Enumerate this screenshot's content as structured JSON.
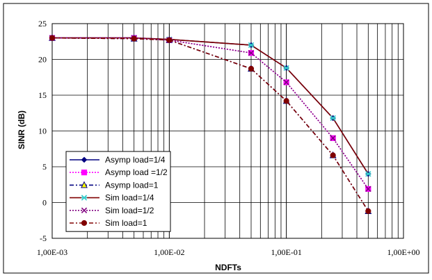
{
  "chart_data": {
    "type": "line",
    "title": "",
    "xlabel": "NDFTs",
    "ylabel": "SINR (dB)",
    "x_scale": "log",
    "xlim": [
      0.001,
      1
    ],
    "ylim": [
      -5,
      25
    ],
    "x_ticks": [
      0.001,
      0.01,
      0.1,
      1
    ],
    "x_tick_labels": [
      "1,00E-03",
      "1,00E-02",
      "1,00E-01",
      "1,00E+00"
    ],
    "y_ticks": [
      -5,
      0,
      5,
      10,
      15,
      20,
      25
    ],
    "y_tick_labels": [
      "-5",
      "0",
      "5",
      "10",
      "15",
      "20",
      "25"
    ],
    "grid": true,
    "legend_position": "bottom-left",
    "series": [
      {
        "name": "Asymp load=1/4",
        "color": "#000080",
        "dash": "solid",
        "marker": "diamond",
        "x": [
          0.001,
          0.005,
          0.01,
          0.05,
          0.1,
          0.25,
          0.5
        ],
        "y": [
          23.0,
          23.0,
          22.8,
          22.0,
          18.8,
          11.8,
          4.0
        ]
      },
      {
        "name": "Asymp load =1/2",
        "color": "#ff00ff",
        "dash": "dot",
        "marker": "square",
        "x": [
          0.001,
          0.005,
          0.01,
          0.05,
          0.1,
          0.25,
          0.5
        ],
        "y": [
          23.0,
          23.0,
          22.7,
          20.9,
          16.8,
          9.0,
          1.9
        ]
      },
      {
        "name": "Asymp load=1",
        "color": "#000080",
        "dash": "dashdot",
        "marker": "triangle",
        "x": [
          0.001,
          0.005,
          0.01,
          0.05,
          0.1,
          0.25,
          0.5
        ],
        "y": [
          23.0,
          22.9,
          22.7,
          18.7,
          14.2,
          6.6,
          -1.2
        ]
      },
      {
        "name": "Sim load=1/4",
        "color": "#800000",
        "dash": "solid",
        "marker": "star",
        "x": [
          0.001,
          0.005,
          0.01,
          0.05,
          0.1,
          0.25,
          0.5
        ],
        "y": [
          23.0,
          23.0,
          22.8,
          22.0,
          18.8,
          11.8,
          4.0
        ]
      },
      {
        "name": "Sim load=1/2",
        "color": "#800080",
        "dash": "dot",
        "marker": "x",
        "x": [
          0.001,
          0.005,
          0.01,
          0.05,
          0.1,
          0.25,
          0.5
        ],
        "y": [
          23.0,
          23.0,
          22.7,
          20.9,
          16.8,
          9.0,
          1.9
        ]
      },
      {
        "name": "Sim load=1",
        "color": "#800000",
        "dash": "dashdot",
        "marker": "circle",
        "x": [
          0.001,
          0.005,
          0.01,
          0.05,
          0.1,
          0.25,
          0.5
        ],
        "y": [
          23.0,
          22.9,
          22.7,
          18.7,
          14.2,
          6.6,
          -1.2
        ]
      }
    ]
  }
}
